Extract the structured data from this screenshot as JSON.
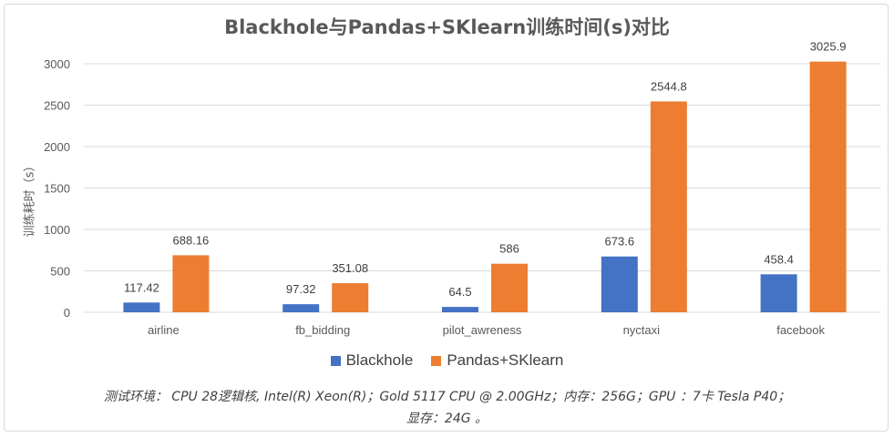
{
  "colors": {
    "series1": "#4472c4",
    "series2": "#ed7d31",
    "grid": "#d9d9d9"
  },
  "footnote": {
    "line1": "测试环境： CPU 28逻辑核,  Intel(R) Xeon(R)；Gold 5117 CPU @ 2.00GHz；内存：256G；GPU ：7卡 Tesla P40；",
    "line2": "显存：24G 。"
  },
  "chart_data": {
    "type": "bar",
    "title": "Blackhole与Pandas+SKlearn训练时间(s)对比",
    "xlabel": "",
    "ylabel": "训练耗时（s）",
    "ylim": [
      0,
      3000
    ],
    "yticks": [
      0,
      500,
      1000,
      1500,
      2000,
      2500,
      3000
    ],
    "grid": true,
    "legend_position": "bottom",
    "categories": [
      "airline",
      "fb_bidding",
      "pilot_awreness",
      "nyctaxi",
      "facebook"
    ],
    "series": [
      {
        "name": "Blackhole",
        "values": [
          117.42,
          97.32,
          64.5,
          673.6,
          458.4
        ],
        "labels": [
          "117.42",
          "97.32",
          "64.5",
          "673.6",
          "458.4"
        ]
      },
      {
        "name": "Pandas+SKlearn",
        "values": [
          688.16,
          351.08,
          586,
          2544.8,
          3025.9
        ],
        "labels": [
          "688.16",
          "351.08",
          "586",
          "2544.8",
          "3025.9"
        ]
      }
    ]
  }
}
